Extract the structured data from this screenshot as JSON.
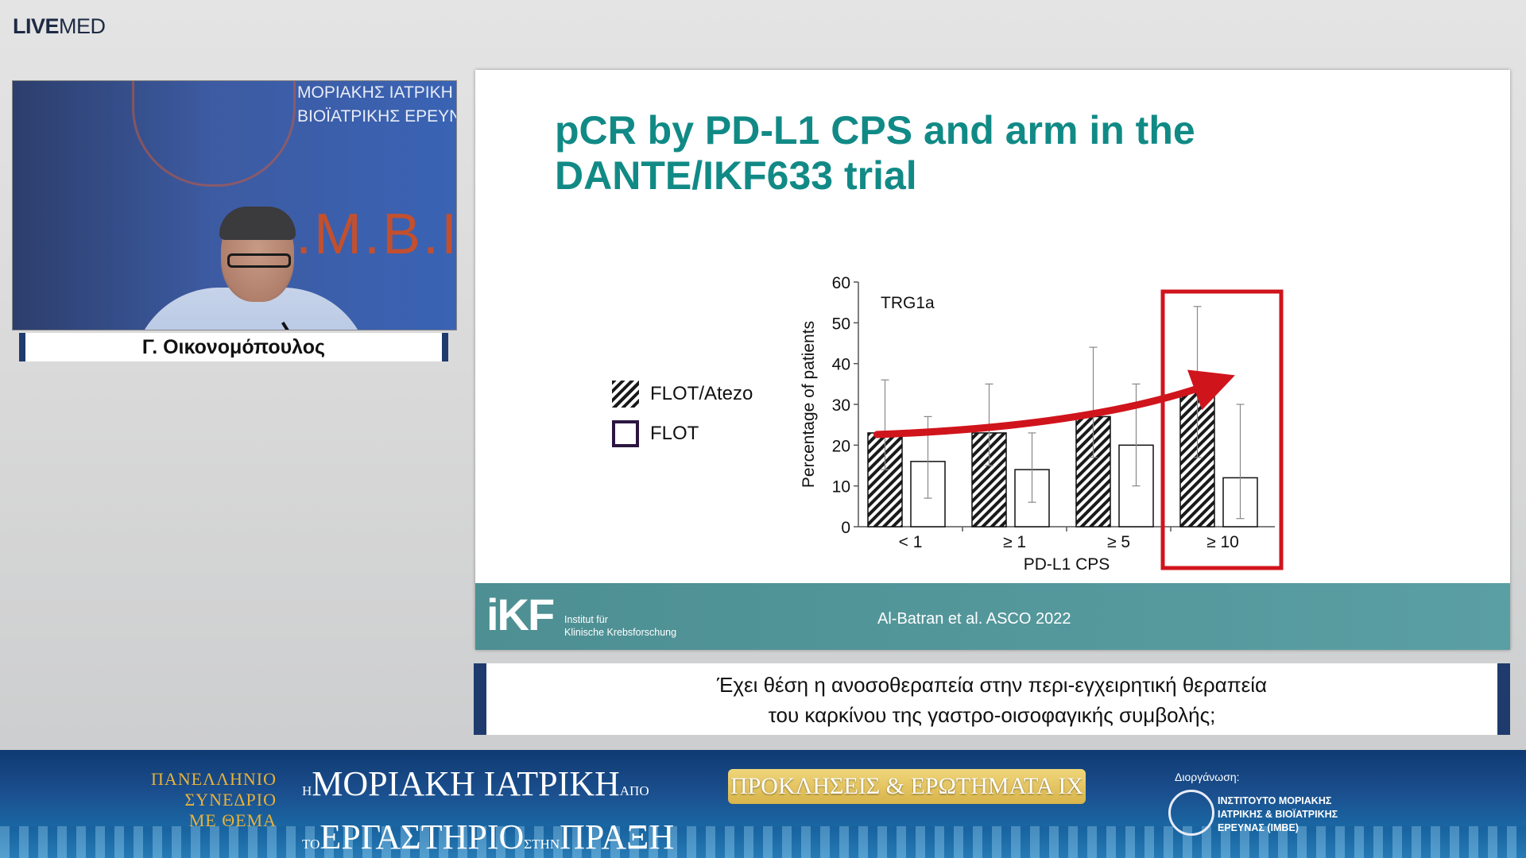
{
  "brand": {
    "bold": "LIVE",
    "light": "MED"
  },
  "video": {
    "logo_line1": "ΜΟΡΙΑΚΗΣ ΙΑΤΡΙΚΗ",
    "logo_line2": "ΒΙΟΪΑΤΡΙΚΗΣ ΕΡΕΥΝ",
    "logo_big": "Ι.Μ.Β.Ι"
  },
  "speaker": {
    "name": "Γ. Οικονομόπουλος"
  },
  "slide": {
    "title_line1": "pCR by PD-L1 CPS and arm in the",
    "title_line2": "DANTE/IKF633 trial",
    "footer_logo": "iKF",
    "footer_logo_sub1": "Institut für",
    "footer_logo_sub2": "Klinische Krebsforschung",
    "citation": "Al-Batran et al. ASCO 2022",
    "colors": {
      "title": "#118a86",
      "footer": "#5a9fa3",
      "highlight": "#d0141c"
    }
  },
  "chart_data": {
    "type": "bar",
    "title": "",
    "annotation": "TRG1a",
    "xlabel": "PD-L1 CPS",
    "ylabel": "Percentage of patients",
    "ylim": [
      0,
      60
    ],
    "yticks": [
      "0",
      "10",
      "20",
      "30",
      "40",
      "50",
      "60"
    ],
    "categories": [
      "< 1",
      "≥ 1",
      "≥ 5",
      "≥ 10"
    ],
    "series": [
      {
        "name": "FLOT/Atezo",
        "values": [
          23,
          23,
          27,
          33
        ],
        "err_low": [
          14,
          15,
          17,
          17
        ],
        "err_high": [
          36,
          35,
          44,
          54
        ]
      },
      {
        "name": "FLOT",
        "values": [
          16,
          14,
          20,
          12
        ],
        "err_low": [
          7,
          6,
          10,
          2
        ],
        "err_high": [
          27,
          23,
          35,
          30
        ]
      }
    ],
    "legend": "left",
    "highlighted_category": "≥ 10"
  },
  "caption": {
    "line1": "Έχει θέση η ανοσοθεραπεία στην περι-εγχειρητική θεραπεία",
    "line2": "του καρκίνου της γαστρο-οισοφαγικής συμβολής;"
  },
  "banner": {
    "left1": "ΠΑΝΕΛΛΗΝΙΟ",
    "left2": "ΣΥΝΕΔΡΙΟ",
    "left3": "ΜΕ ΘΕΜΑ",
    "mid_pre1": "Η",
    "mid_main1": "ΜΟΡΙΑΚΗ ΙΑΤΡΙΚΗ",
    "mid_post1": "ΑΠΟ",
    "mid_pre2": "ΤΟ",
    "mid_main2": "ΕΡΓΑΣΤΗΡΙΟ",
    "mid_post2": "ΣΤΗΝ",
    "mid_main3": "ΠΡΑΞΗ",
    "pill": "ΠΡΟΚΛΗΣΕΙΣ & ΕΡΩΤΗΜΑΤΑ ΙΧ",
    "org_label": "Διοργάνωση:",
    "org_name1": "ΙΝΣΤΙΤΟΥΤΟ ΜΟΡΙΑΚΗΣ",
    "org_name2": "ΙΑΤΡΙΚΗΣ & ΒΙΟΪΑΤΡΙΚΗΣ",
    "org_name3": "ΕΡΕΥΝΑΣ (ΙΜΒΕ)"
  }
}
